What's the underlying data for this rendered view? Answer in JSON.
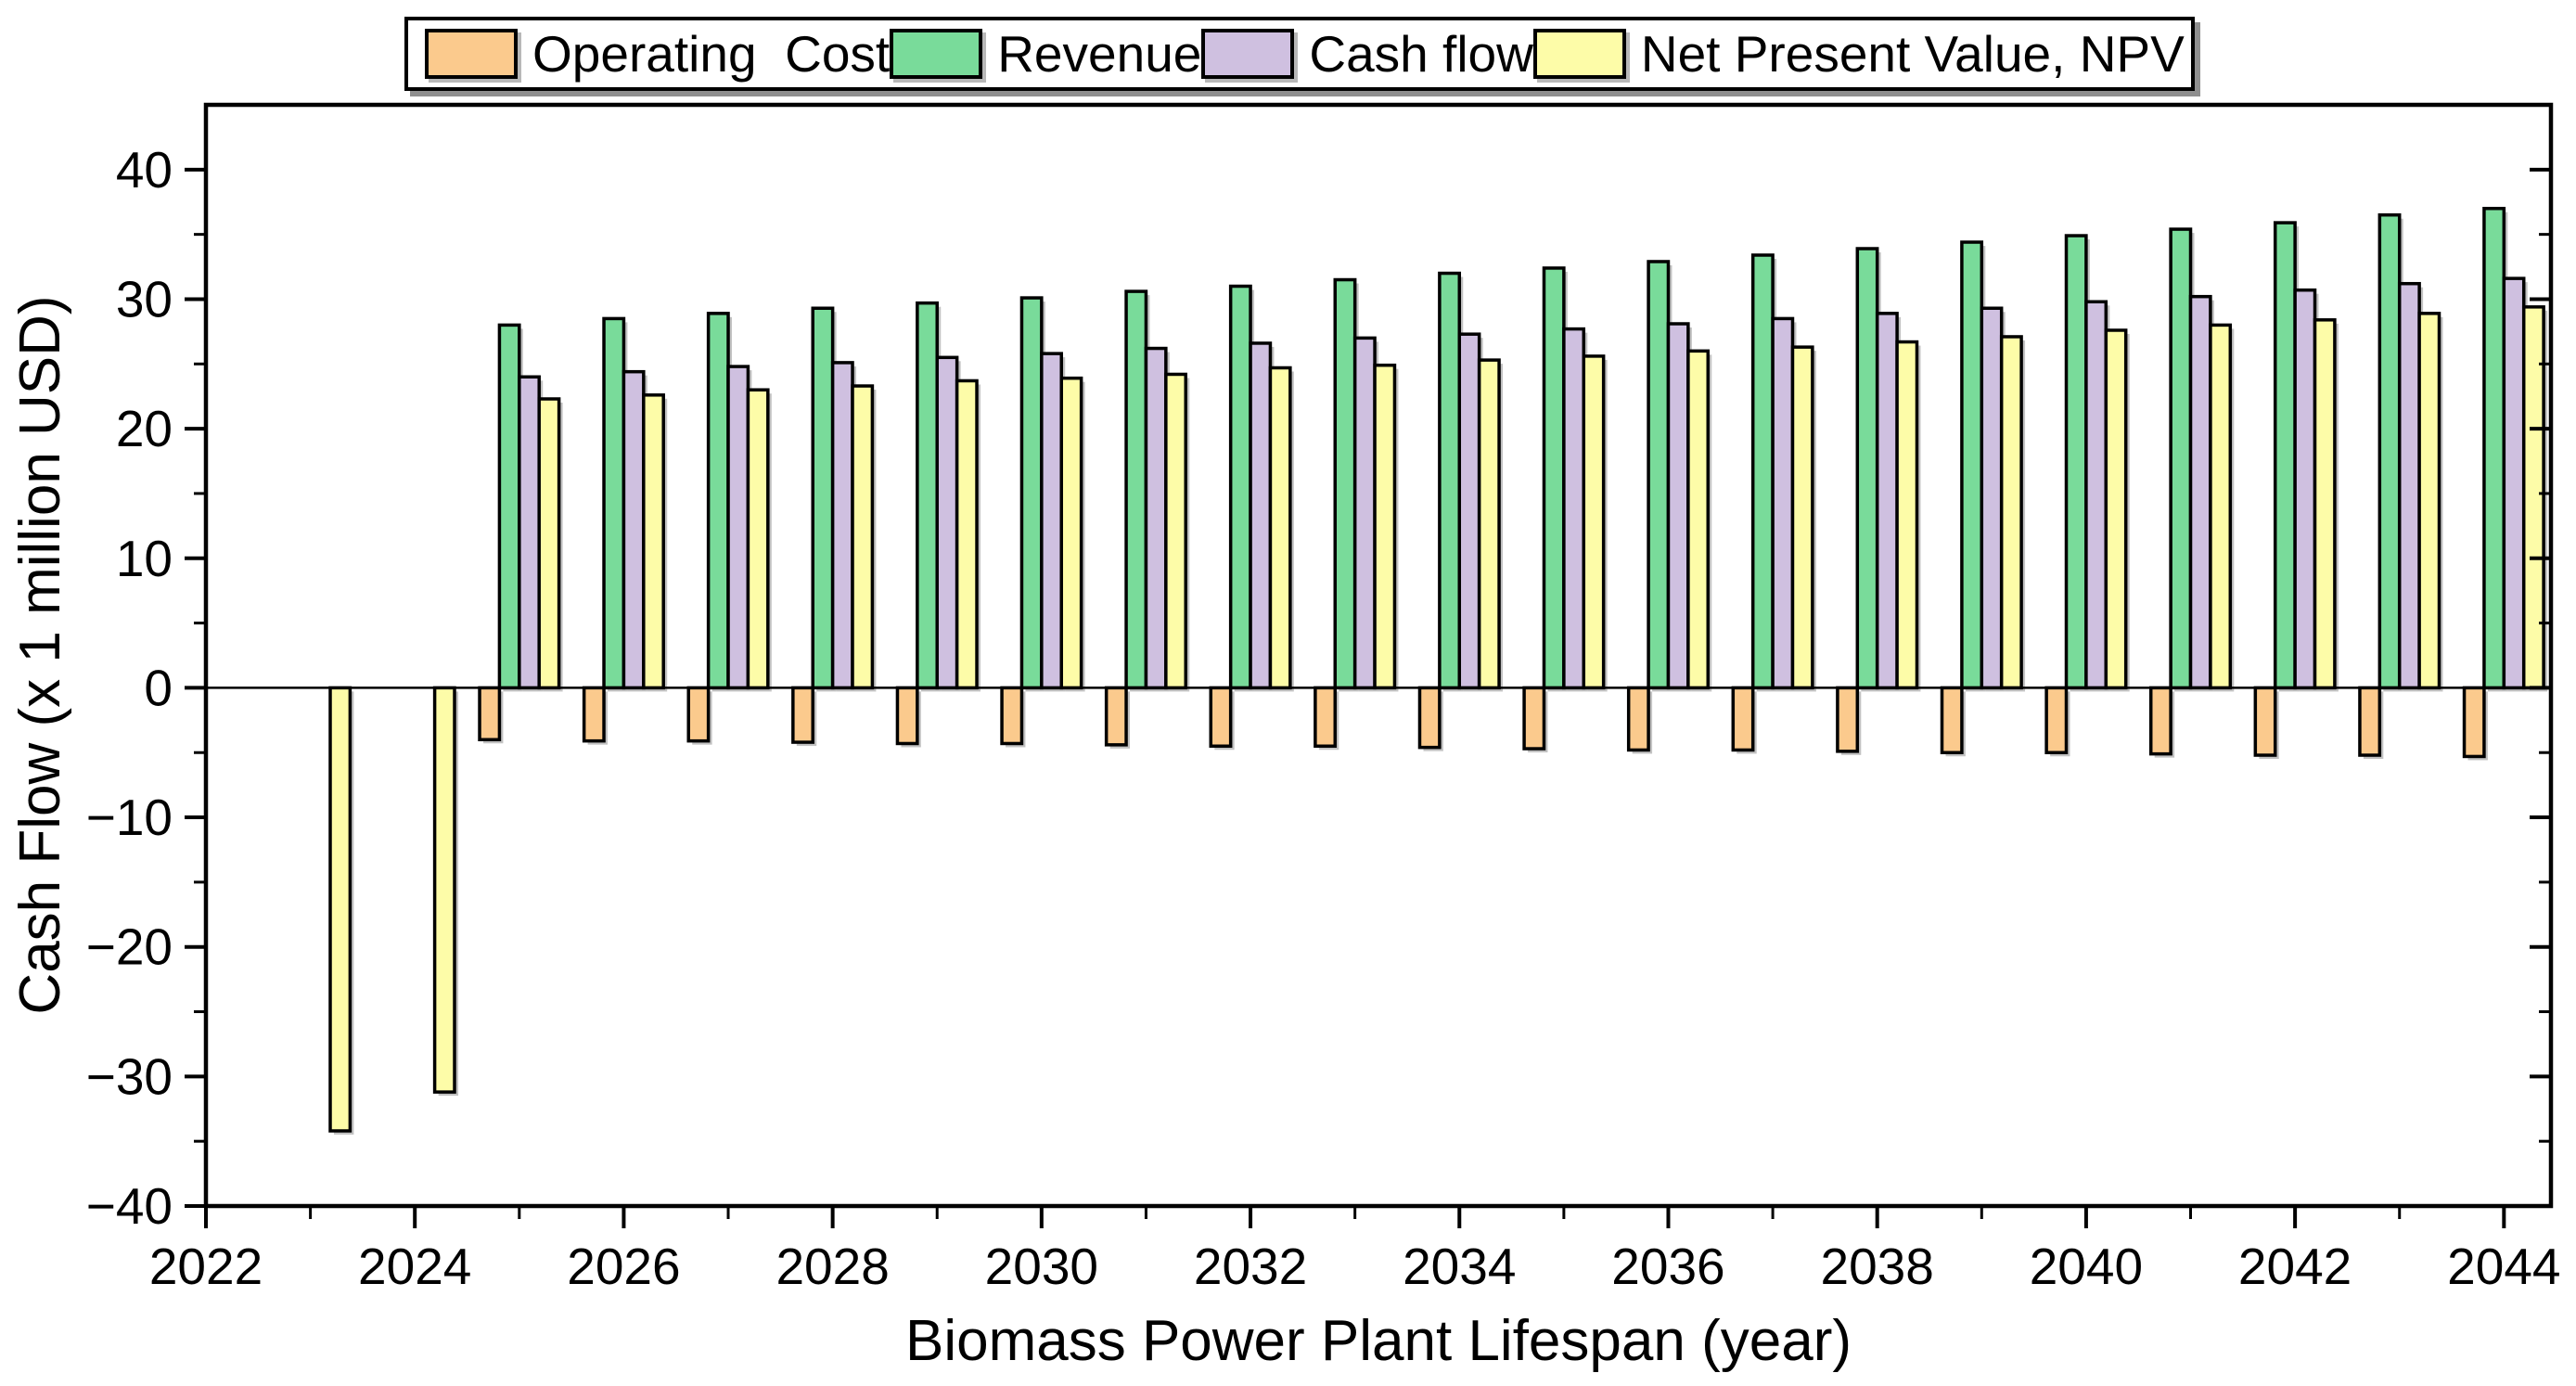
{
  "figure": {
    "background": "#ffffff",
    "axis_color": "#000000",
    "legend": {
      "items": [
        {
          "label": "Operating  Cost",
          "color": "#FBCA8D"
        },
        {
          "label": "Revenue",
          "color": "#79DB9A"
        },
        {
          "label": "Cash flow",
          "color": "#CFC0E0"
        },
        {
          "label": "Net Present Value, NPV",
          "color": "#FDFCA8"
        }
      ]
    }
  },
  "chart_data": {
    "type": "bar",
    "title": "",
    "xlabel": "Biomass Power Plant Lifespan (year)",
    "ylabel": "Cash Flow (x 1 million USD)",
    "legend_position": "top",
    "grid": false,
    "x_range": [
      2022,
      2044.45
    ],
    "y_range": [
      -40,
      45
    ],
    "bar_width_year": 0.19,
    "group_offsets": [
      -0.285,
      -0.095,
      0.095,
      0.285
    ],
    "x_major_ticks": [
      {
        "v": 2022,
        "label": "2022"
      },
      {
        "v": 2024,
        "label": "2024"
      },
      {
        "v": 2026,
        "label": "2026"
      },
      {
        "v": 2028,
        "label": "2028"
      },
      {
        "v": 2030,
        "label": "2030"
      },
      {
        "v": 2032,
        "label": "2032"
      },
      {
        "v": 2034,
        "label": "2034"
      },
      {
        "v": 2036,
        "label": "2036"
      },
      {
        "v": 2038,
        "label": "2038"
      },
      {
        "v": 2040,
        "label": "2040"
      },
      {
        "v": 2042,
        "label": "2042"
      },
      {
        "v": 2044,
        "label": "2044"
      }
    ],
    "x_minor_ticks": [
      2023,
      2025,
      2027,
      2029,
      2031,
      2033,
      2035,
      2037,
      2039,
      2041,
      2043
    ],
    "y_major_ticks": [
      {
        "v": -40,
        "label": "−40"
      },
      {
        "v": -30,
        "label": "−30"
      },
      {
        "v": -20,
        "label": "−20"
      },
      {
        "v": -10,
        "label": "−10"
      },
      {
        "v": 0,
        "label": "0"
      },
      {
        "v": 10,
        "label": "10"
      },
      {
        "v": 20,
        "label": "20"
      },
      {
        "v": 30,
        "label": "30"
      },
      {
        "v": 40,
        "label": "40"
      }
    ],
    "y_minor_ticks": [
      -35,
      -25,
      -15,
      -5,
      5,
      15,
      25,
      35
    ],
    "categories": [
      2023,
      2024,
      2025,
      2026,
      2027,
      2028,
      2029,
      2030,
      2031,
      2032,
      2033,
      2034,
      2035,
      2036,
      2037,
      2038,
      2039,
      2040,
      2041,
      2042,
      2043,
      2044
    ],
    "series": [
      {
        "name": "Operating  Cost",
        "color": "#FBCA8D",
        "values": [
          null,
          null,
          -4.0,
          -4.1,
          -4.1,
          -4.2,
          -4.3,
          -4.3,
          -4.4,
          -4.5,
          -4.5,
          -4.6,
          -4.7,
          -4.8,
          -4.8,
          -4.9,
          -5.0,
          -5.0,
          -5.1,
          -5.2,
          -5.2,
          -5.3
        ]
      },
      {
        "name": "Revenue",
        "color": "#79DB9A",
        "values": [
          null,
          null,
          28.0,
          28.5,
          28.9,
          29.3,
          29.7,
          30.1,
          30.6,
          31.0,
          31.5,
          32.0,
          32.4,
          32.9,
          33.4,
          33.9,
          34.4,
          34.9,
          35.4,
          35.9,
          36.5,
          37.0
        ]
      },
      {
        "name": "Cash flow",
        "color": "#CFC0E0",
        "values": [
          null,
          null,
          24.0,
          24.4,
          24.8,
          25.1,
          25.5,
          25.8,
          26.2,
          26.6,
          27.0,
          27.3,
          27.7,
          28.1,
          28.5,
          28.9,
          29.3,
          29.8,
          30.2,
          30.7,
          31.2,
          31.6
        ]
      },
      {
        "name": "Net Present Value, NPV",
        "color": "#FDFCA8",
        "values": [
          -34.2,
          -31.2,
          22.3,
          22.6,
          23.0,
          23.3,
          23.7,
          23.9,
          24.2,
          24.7,
          24.9,
          25.3,
          25.6,
          26.0,
          26.3,
          26.7,
          27.1,
          27.6,
          28.0,
          28.4,
          28.9,
          29.4
        ]
      }
    ]
  }
}
